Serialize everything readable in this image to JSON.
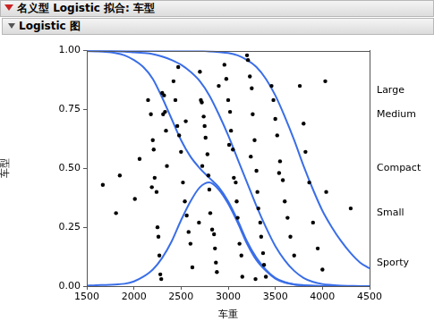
{
  "chart_data": {
    "type": "line",
    "title": "名义型 Logistic 拟合: 车型",
    "subtitle": "Logistic 图",
    "x_label": "车重",
    "y_label": "车型",
    "xlim": [
      1500,
      4500
    ],
    "xticks": [
      1500,
      2000,
      2500,
      3000,
      3500,
      4000,
      4500
    ],
    "ylim": [
      0,
      1
    ],
    "yticks": [
      {
        "value": 0,
        "label": "0.00"
      },
      {
        "value": 0.25,
        "label": "0.25"
      },
      {
        "value": 0.5,
        "label": "0.50"
      },
      {
        "value": 0.75,
        "label": "0.75"
      },
      {
        "value": 1,
        "label": "1.00"
      }
    ],
    "y2lim": [
      0,
      1
    ],
    "y2ticks": [
      {
        "value": 0.1,
        "label": "Sporty"
      },
      {
        "value": 0.31,
        "label": "Small"
      },
      {
        "value": 0.5,
        "label": "Compact"
      },
      {
        "value": 0.728,
        "label": "Medium"
      },
      {
        "value": 0.832,
        "label": "Large"
      }
    ],
    "grid": false,
    "series": [
      {
        "type": "scatter",
        "color": "#000000",
        "marker": "circle",
        "x": [
          1670,
          1810,
          1850,
          2010,
          2060,
          2150,
          2180,
          2200,
          2210,
          2220,
          2240,
          2250,
          2260,
          2270,
          2280,
          2290,
          2300,
          2320,
          2330,
          2340,
          2350,
          2190,
          2310,
          2420,
          2440,
          2460,
          2480,
          2500,
          2520,
          2540,
          2560,
          2580,
          2600,
          2620,
          2470,
          2550,
          2700,
          2710,
          2720,
          2740,
          2750,
          2760,
          2780,
          2790,
          2800,
          2810,
          2830,
          2850,
          2860,
          2870,
          2880,
          2900,
          2725,
          2690,
          2960,
          2980,
          3000,
          3020,
          3030,
          3050,
          3060,
          3080,
          3090,
          3100,
          3120,
          3140,
          3150,
          3010,
          3200,
          3210,
          3230,
          3250,
          3260,
          3280,
          3300,
          3310,
          3320,
          3340,
          3350,
          3370,
          3380,
          3400,
          3290,
          3240,
          3460,
          3480,
          3500,
          3520,
          3550,
          3580,
          3600,
          3630,
          3660,
          3700,
          3540,
          3760,
          3800,
          3820,
          3860,
          3900,
          3950,
          4000,
          4030,
          4040,
          4300
        ],
        "values": [
          0.43,
          0.31,
          0.47,
          0.37,
          0.54,
          0.79,
          0.73,
          0.62,
          0.58,
          0.46,
          0.4,
          0.25,
          0.21,
          0.13,
          0.05,
          0.03,
          0.82,
          0.81,
          0.74,
          0.66,
          0.51,
          0.42,
          0.73,
          0.87,
          0.79,
          0.68,
          0.64,
          0.57,
          0.44,
          0.36,
          0.3,
          0.23,
          0.18,
          0.08,
          0.93,
          0.7,
          0.91,
          0.79,
          0.78,
          0.72,
          0.68,
          0.63,
          0.56,
          0.47,
          0.41,
          0.31,
          0.24,
          0.22,
          0.16,
          0.1,
          0.06,
          0.85,
          0.51,
          0.27,
          0.94,
          0.88,
          0.79,
          0.74,
          0.66,
          0.58,
          0.46,
          0.44,
          0.36,
          0.29,
          0.18,
          0.13,
          0.04,
          0.6,
          0.98,
          0.96,
          0.89,
          0.84,
          0.73,
          0.62,
          0.49,
          0.4,
          0.33,
          0.27,
          0.21,
          0.14,
          0.09,
          0.04,
          0.03,
          0.55,
          0.85,
          0.79,
          0.71,
          0.64,
          0.53,
          0.45,
          0.36,
          0.29,
          0.21,
          0.13,
          0.48,
          0.85,
          0.69,
          0.57,
          0.44,
          0.27,
          0.16,
          0.07,
          0.87,
          0.4,
          0.33
        ]
      },
      {
        "type": "line",
        "color": "#3a6ee8",
        "line_style": "solid",
        "x": [
          1500,
          1600,
          1700,
          1800,
          1900,
          2000,
          2100,
          2200,
          2300,
          2400,
          2500,
          2600,
          2700,
          2800,
          2900,
          3000,
          3100,
          3200,
          3300,
          3400,
          3500,
          3600,
          3700,
          3800,
          3900,
          4000,
          4100,
          4200,
          4300,
          4400,
          4500
        ],
        "values": [
          1,
          1,
          1,
          1,
          1,
          1,
          1,
          1,
          1,
          1,
          1,
          1,
          0.999,
          0.997,
          0.994,
          0.99,
          0.98,
          0.96,
          0.93,
          0.88,
          0.81,
          0.72,
          0.62,
          0.51,
          0.41,
          0.32,
          0.25,
          0.19,
          0.14,
          0.1,
          0.075
        ]
      },
      {
        "type": "line",
        "color": "#3a6ee8",
        "line_style": "solid",
        "x": [
          1500,
          1600,
          1700,
          1800,
          1900,
          2000,
          2100,
          2200,
          2300,
          2400,
          2500,
          2600,
          2700,
          2800,
          2900,
          3000,
          3100,
          3200,
          3300,
          3400,
          3500,
          3600,
          3700,
          3800,
          3900,
          4000,
          4100,
          4200,
          4300,
          4400,
          4500
        ],
        "values": [
          1,
          1,
          0.999,
          0.998,
          0.996,
          0.993,
          0.99,
          0.985,
          0.975,
          0.96,
          0.94,
          0.91,
          0.87,
          0.81,
          0.73,
          0.64,
          0.54,
          0.44,
          0.34,
          0.25,
          0.17,
          0.11,
          0.065,
          0.035,
          0.018,
          0.009,
          0.005,
          0.002,
          0.001,
          0,
          0
        ]
      },
      {
        "type": "line",
        "color": "#3a6ee8",
        "line_style": "solid",
        "x": [
          1500,
          1600,
          1700,
          1800,
          1900,
          2000,
          2100,
          2200,
          2300,
          2400,
          2500,
          2600,
          2700,
          2800,
          2900,
          3000,
          3100,
          3200,
          3300,
          3400,
          3500,
          3600,
          3700,
          3800,
          3900,
          4000,
          4100,
          4200,
          4300,
          4400,
          4500
        ],
        "values": [
          0.998,
          0.997,
          0.995,
          0.99,
          0.98,
          0.96,
          0.93,
          0.88,
          0.8,
          0.71,
          0.62,
          0.55,
          0.5,
          0.46,
          0.42,
          0.36,
          0.28,
          0.19,
          0.12,
          0.07,
          0.035,
          0.017,
          0.008,
          0.004,
          0.002,
          0.001,
          0,
          0,
          0,
          0,
          0
        ]
      },
      {
        "type": "line",
        "color": "#3a6ee8",
        "line_style": "solid",
        "x": [
          1500,
          1600,
          1700,
          1800,
          1900,
          2000,
          2100,
          2200,
          2300,
          2400,
          2500,
          2600,
          2700,
          2800,
          2900,
          3000,
          3100,
          3200,
          3300,
          3400,
          3500,
          3600,
          3700,
          3800,
          3900,
          4000,
          4100,
          4200,
          4300,
          4400,
          4500
        ],
        "values": [
          0.002,
          0.004,
          0.005,
          0.007,
          0.01,
          0.02,
          0.04,
          0.07,
          0.12,
          0.19,
          0.28,
          0.36,
          0.42,
          0.44,
          0.41,
          0.35,
          0.27,
          0.18,
          0.11,
          0.065,
          0.032,
          0.015,
          0.007,
          0.003,
          0.001,
          0,
          0,
          0,
          0,
          0,
          0
        ]
      }
    ]
  }
}
